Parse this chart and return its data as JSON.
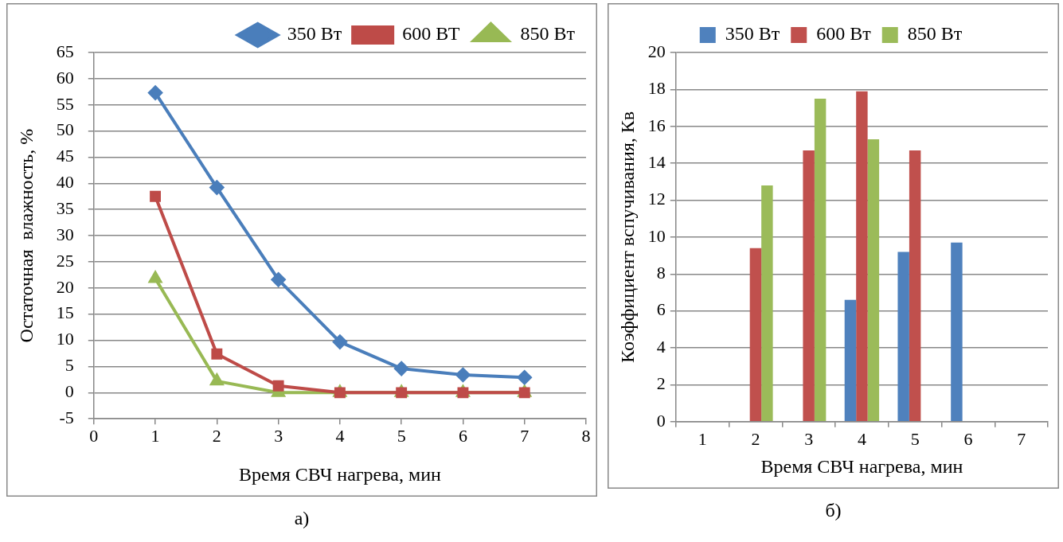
{
  "chart_data": [
    {
      "type": "line",
      "xlabel": "Время СВЧ нагрева, мин",
      "ylabel": "Остаточная  влажность, %",
      "x": [
        1,
        2,
        3,
        4,
        5,
        6,
        7
      ],
      "xlim": [
        0,
        8
      ],
      "xticks": [
        0,
        1,
        2,
        3,
        4,
        5,
        6,
        7,
        8
      ],
      "ylim": [
        -5,
        65
      ],
      "yticks": [
        -5,
        0,
        5,
        10,
        15,
        20,
        25,
        30,
        35,
        40,
        45,
        50,
        55,
        60,
        65
      ],
      "grid": "y",
      "legend": "top right",
      "annotations": [
        "а)"
      ],
      "series": [
        {
          "name": "350 Вт",
          "color": "#4a7ebb",
          "marker": "diamond",
          "values": [
            57.3,
            39.2,
            21.6,
            9.7,
            4.6,
            3.4,
            2.9
          ]
        },
        {
          "name": "600 ВТ",
          "color": "#be4b48",
          "marker": "square",
          "values": [
            37.5,
            7.4,
            1.3,
            0,
            0,
            0,
            0
          ]
        },
        {
          "name": "850 Вт",
          "color": "#98b954",
          "marker": "triangle",
          "values": [
            21.8,
            2.2,
            0,
            0,
            0,
            0,
            0
          ]
        }
      ]
    },
    {
      "type": "bar",
      "xlabel": "Время СВЧ нагрева, мин",
      "ylabel": "Коэффициент вспучивания, Кв",
      "categories": [
        "1",
        "2",
        "3",
        "4",
        "5",
        "6",
        "7"
      ],
      "ylim": [
        0,
        20
      ],
      "yticks": [
        0,
        2,
        4,
        6,
        8,
        10,
        12,
        14,
        16,
        18,
        20
      ],
      "grid": "y",
      "legend": "top",
      "annotations": [
        "б)"
      ],
      "series": [
        {
          "name": "350 Вт",
          "color": "#4f81bd",
          "values": [
            null,
            null,
            null,
            6.6,
            9.2,
            9.7,
            null
          ]
        },
        {
          "name": "600 Вт",
          "color": "#c0504d",
          "values": [
            null,
            9.4,
            14.7,
            17.9,
            14.7,
            null,
            null
          ]
        },
        {
          "name": "850 Вт",
          "color": "#9bbb59",
          "values": [
            null,
            12.8,
            17.5,
            15.3,
            null,
            null,
            null
          ]
        }
      ]
    }
  ]
}
